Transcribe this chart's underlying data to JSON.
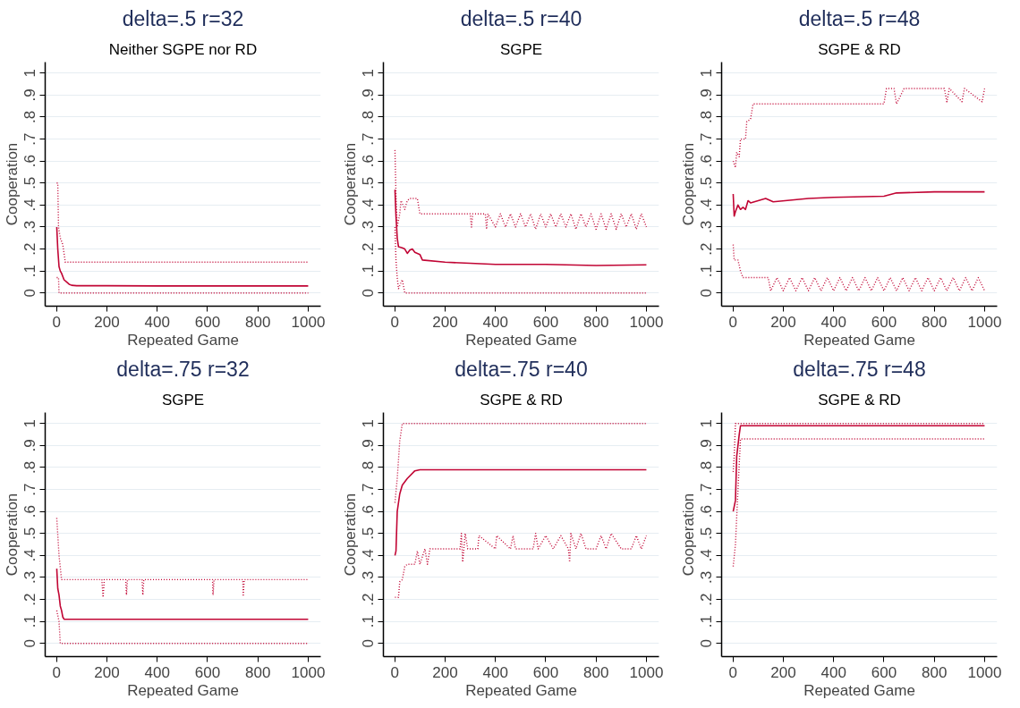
{
  "chart_data": [
    {
      "type": "line",
      "title": "delta=.5 r=32",
      "subtitle": "Neither SGPE nor RD",
      "xlabel": "Repeated Game",
      "ylabel": "Cooperation",
      "xlim": [
        -45,
        1050
      ],
      "ylim": [
        -0.06,
        1.05
      ],
      "xticks": [
        0,
        200,
        400,
        600,
        800,
        1000
      ],
      "yticks": [
        0,
        {
          "value": 0.1,
          "label": ".1"
        },
        {
          "value": 0.2,
          "label": ".2"
        },
        {
          "value": 0.3,
          "label": ".3"
        },
        {
          "value": 0.4,
          "label": ".4"
        },
        {
          "value": 0.5,
          "label": ".5"
        },
        {
          "value": 0.6,
          "label": ".6"
        },
        {
          "value": 0.7,
          "label": ".7"
        },
        {
          "value": 0.8,
          "label": ".8"
        },
        {
          "value": 0.9,
          "label": ".9"
        },
        1
      ],
      "grid": "y",
      "series": [
        {
          "color": "#c10534",
          "line_style": "solid",
          "x": [
            1,
            5,
            10,
            15,
            20,
            30,
            40,
            50,
            60,
            80,
            100,
            200,
            400,
            600,
            800,
            1000
          ],
          "values": [
            0.3,
            0.2,
            0.12,
            0.1,
            0.09,
            0.06,
            0.05,
            0.04,
            0.035,
            0.033,
            0.033,
            0.033,
            0.032,
            0.032,
            0.032,
            0.032
          ]
        },
        {
          "color": "#c10534",
          "line_style": "dotted",
          "x": [
            1,
            5,
            8,
            15,
            25,
            35,
            1000
          ],
          "values": [
            0.5,
            0.5,
            0.3,
            0.25,
            0.22,
            0.14,
            0.14
          ]
        },
        {
          "color": "#c10534",
          "line_style": "dotted",
          "x": [
            1,
            8,
            10,
            1000
          ],
          "values": [
            0.07,
            0.07,
            0,
            0
          ]
        }
      ]
    },
    {
      "type": "line",
      "title": "delta=.5 r=40",
      "subtitle": "SGPE",
      "xlabel": "Repeated Game",
      "ylabel": "Cooperation",
      "xlim": [
        -45,
        1050
      ],
      "ylim": [
        -0.06,
        1.05
      ],
      "xticks": [
        0,
        200,
        400,
        600,
        800,
        1000
      ],
      "yticks": [
        0,
        {
          "value": 0.1,
          "label": ".1"
        },
        {
          "value": 0.2,
          "label": ".2"
        },
        {
          "value": 0.3,
          "label": ".3"
        },
        {
          "value": 0.4,
          "label": ".4"
        },
        {
          "value": 0.5,
          "label": ".5"
        },
        {
          "value": 0.6,
          "label": ".6"
        },
        {
          "value": 0.7,
          "label": ".7"
        },
        {
          "value": 0.8,
          "label": ".8"
        },
        {
          "value": 0.9,
          "label": ".9"
        },
        1
      ],
      "grid": "y",
      "series": [
        {
          "color": "#c10534",
          "line_style": "solid",
          "x": [
            1,
            5,
            10,
            15,
            30,
            40,
            50,
            60,
            70,
            80,
            100,
            110,
            200,
            300,
            400,
            600,
            800,
            1000
          ],
          "values": [
            0.47,
            0.35,
            0.25,
            0.21,
            0.205,
            0.2,
            0.18,
            0.195,
            0.2,
            0.185,
            0.175,
            0.15,
            0.14,
            0.135,
            0.13,
            0.13,
            0.125,
            0.128
          ]
        },
        {
          "color": "#c10534",
          "line_style": "dotted",
          "x": [
            1,
            5,
            10,
            20,
            25,
            40,
            50,
            60,
            90,
            100,
            300,
            305,
            310,
            360,
            365,
            370,
            400,
            420,
            440,
            460,
            480,
            500,
            520,
            540,
            560,
            580,
            600,
            620,
            640,
            660,
            680,
            700,
            720,
            740,
            760,
            780,
            800,
            820,
            840,
            860,
            880,
            900,
            920,
            940,
            960,
            980,
            1000
          ],
          "values": [
            0.65,
            0.45,
            0.3,
            0.36,
            0.42,
            0.38,
            0.42,
            0.43,
            0.43,
            0.36,
            0.36,
            0.3,
            0.36,
            0.36,
            0.29,
            0.36,
            0.3,
            0.36,
            0.3,
            0.36,
            0.3,
            0.36,
            0.3,
            0.36,
            0.29,
            0.36,
            0.3,
            0.36,
            0.3,
            0.36,
            0.3,
            0.36,
            0.29,
            0.36,
            0.3,
            0.36,
            0.29,
            0.36,
            0.29,
            0.36,
            0.29,
            0.36,
            0.3,
            0.36,
            0.29,
            0.36,
            0.3
          ]
        },
        {
          "color": "#c10534",
          "line_style": "dotted",
          "x": [
            1,
            5,
            10,
            15,
            30,
            40,
            1000
          ],
          "values": [
            0.3,
            0.15,
            0.07,
            0.02,
            0.06,
            0,
            0
          ]
        }
      ]
    },
    {
      "type": "line",
      "title": "delta=.5 r=48",
      "subtitle": "SGPE & RD",
      "xlabel": "Repeated Game",
      "ylabel": "Cooperation",
      "xlim": [
        -45,
        1050
      ],
      "ylim": [
        -0.06,
        1.05
      ],
      "xticks": [
        0,
        200,
        400,
        600,
        800,
        1000
      ],
      "yticks": [
        0,
        {
          "value": 0.1,
          "label": ".1"
        },
        {
          "value": 0.2,
          "label": ".2"
        },
        {
          "value": 0.3,
          "label": ".3"
        },
        {
          "value": 0.4,
          "label": ".4"
        },
        {
          "value": 0.5,
          "label": ".5"
        },
        {
          "value": 0.6,
          "label": ".6"
        },
        {
          "value": 0.7,
          "label": ".7"
        },
        {
          "value": 0.8,
          "label": ".8"
        },
        {
          "value": 0.9,
          "label": ".9"
        },
        1
      ],
      "grid": "y",
      "series": [
        {
          "color": "#c10534",
          "line_style": "solid",
          "x": [
            1,
            5,
            10,
            20,
            30,
            40,
            50,
            60,
            70,
            130,
            160,
            300,
            400,
            600,
            650,
            800,
            1000
          ],
          "values": [
            0.45,
            0.35,
            0.37,
            0.4,
            0.38,
            0.39,
            0.38,
            0.42,
            0.41,
            0.43,
            0.415,
            0.43,
            0.435,
            0.44,
            0.455,
            0.46,
            0.46
          ]
        },
        {
          "color": "#c10534",
          "line_style": "dotted",
          "x": [
            1,
            10,
            15,
            25,
            30,
            50,
            55,
            70,
            80,
            600,
            610,
            640,
            650,
            680,
            840,
            850,
            860,
            910,
            920,
            990,
            1000
          ],
          "values": [
            0.6,
            0.57,
            0.64,
            0.62,
            0.7,
            0.7,
            0.78,
            0.79,
            0.86,
            0.86,
            0.93,
            0.93,
            0.86,
            0.93,
            0.93,
            0.87,
            0.93,
            0.87,
            0.93,
            0.87,
            0.93
          ]
        },
        {
          "color": "#c10534",
          "line_style": "dotted",
          "x": [
            1,
            5,
            20,
            30,
            40,
            140,
            150,
            175,
            200,
            225,
            250,
            275,
            300,
            325,
            350,
            375,
            400,
            425,
            450,
            475,
            500,
            525,
            550,
            575,
            600,
            625,
            650,
            675,
            700,
            725,
            750,
            775,
            800,
            825,
            850,
            875,
            900,
            925,
            950,
            975,
            1000
          ],
          "values": [
            0.22,
            0.15,
            0.15,
            0.1,
            0.07,
            0.07,
            0.01,
            0.07,
            0.01,
            0.07,
            0.01,
            0.07,
            0.01,
            0.07,
            0.01,
            0.07,
            0.01,
            0.07,
            0.01,
            0.07,
            0.01,
            0.07,
            0.01,
            0.07,
            0.01,
            0.07,
            0.01,
            0.07,
            0.01,
            0.07,
            0.01,
            0.07,
            0.01,
            0.07,
            0.01,
            0.07,
            0.01,
            0.07,
            0.01,
            0.07,
            0.01
          ]
        }
      ]
    },
    {
      "type": "line",
      "title": "delta=.75 r=32",
      "subtitle": "SGPE",
      "xlabel": "Repeated Game",
      "ylabel": "Cooperation",
      "xlim": [
        -45,
        1050
      ],
      "ylim": [
        -0.06,
        1.05
      ],
      "xticks": [
        0,
        200,
        400,
        600,
        800,
        1000
      ],
      "yticks": [
        0,
        {
          "value": 0.1,
          "label": ".1"
        },
        {
          "value": 0.2,
          "label": ".2"
        },
        {
          "value": 0.3,
          "label": ".3"
        },
        {
          "value": 0.4,
          "label": ".4"
        },
        {
          "value": 0.5,
          "label": ".5"
        },
        {
          "value": 0.6,
          "label": ".6"
        },
        {
          "value": 0.7,
          "label": ".7"
        },
        {
          "value": 0.8,
          "label": ".8"
        },
        {
          "value": 0.9,
          "label": ".9"
        },
        1
      ],
      "grid": "y",
      "series": [
        {
          "color": "#c10534",
          "line_style": "solid",
          "x": [
            1,
            5,
            10,
            15,
            20,
            25,
            30,
            100,
            400,
            700,
            1000
          ],
          "values": [
            0.34,
            0.25,
            0.22,
            0.17,
            0.15,
            0.12,
            0.11,
            0.11,
            0.11,
            0.11,
            0.11
          ]
        },
        {
          "color": "#c10534",
          "line_style": "dotted",
          "x": [
            1,
            10,
            20,
            180,
            185,
            190,
            275,
            278,
            282,
            340,
            343,
            347,
            620,
            622,
            626,
            740,
            742,
            746,
            1000
          ],
          "values": [
            0.57,
            0.4,
            0.29,
            0.29,
            0.21,
            0.29,
            0.29,
            0.22,
            0.29,
            0.29,
            0.22,
            0.29,
            0.29,
            0.22,
            0.29,
            0.29,
            0.22,
            0.29,
            0.29
          ]
        },
        {
          "color": "#c10534",
          "line_style": "dotted",
          "x": [
            1,
            10,
            15,
            1000
          ],
          "values": [
            0.15,
            0.1,
            0,
            0
          ]
        }
      ]
    },
    {
      "type": "line",
      "title": "delta=.75 r=40",
      "subtitle": "SGPE & RD",
      "xlabel": "Repeated Game",
      "ylabel": "Cooperation",
      "xlim": [
        -45,
        1050
      ],
      "ylim": [
        -0.06,
        1.05
      ],
      "xticks": [
        0,
        200,
        400,
        600,
        800,
        1000
      ],
      "yticks": [
        0,
        {
          "value": 0.1,
          "label": ".1"
        },
        {
          "value": 0.2,
          "label": ".2"
        },
        {
          "value": 0.3,
          "label": ".3"
        },
        {
          "value": 0.4,
          "label": ".4"
        },
        {
          "value": 0.5,
          "label": ".5"
        },
        {
          "value": 0.6,
          "label": ".6"
        },
        {
          "value": 0.7,
          "label": ".7"
        },
        {
          "value": 0.8,
          "label": ".8"
        },
        {
          "value": 0.9,
          "label": ".9"
        },
        1
      ],
      "grid": "y",
      "series": [
        {
          "color": "#c10534",
          "line_style": "solid",
          "x": [
            1,
            5,
            10,
            20,
            30,
            50,
            80,
            100,
            1000
          ],
          "values": [
            0.4,
            0.42,
            0.6,
            0.68,
            0.72,
            0.75,
            0.785,
            0.79,
            0.79
          ]
        },
        {
          "color": "#c10534",
          "line_style": "dotted",
          "x": [
            1,
            10,
            20,
            30,
            1000
          ],
          "values": [
            0.64,
            0.75,
            0.92,
            1,
            1
          ]
        },
        {
          "color": "#c10534",
          "line_style": "dotted",
          "x": [
            1,
            15,
            20,
            30,
            40,
            50,
            80,
            90,
            100,
            120,
            130,
            140,
            260,
            265,
            270,
            280,
            290,
            330,
            335,
            400,
            405,
            460,
            470,
            480,
            550,
            560,
            570,
            600,
            630,
            660,
            690,
            695,
            700,
            720,
            740,
            760,
            800,
            820,
            840,
            860,
            900,
            940,
            960,
            980,
            1000
          ],
          "values": [
            0.21,
            0.21,
            0.28,
            0.29,
            0.35,
            0.36,
            0.36,
            0.42,
            0.36,
            0.43,
            0.36,
            0.43,
            0.43,
            0.5,
            0.37,
            0.5,
            0.43,
            0.43,
            0.49,
            0.43,
            0.49,
            0.43,
            0.49,
            0.43,
            0.43,
            0.5,
            0.43,
            0.49,
            0.43,
            0.49,
            0.43,
            0.37,
            0.5,
            0.43,
            0.5,
            0.43,
            0.43,
            0.49,
            0.43,
            0.5,
            0.43,
            0.43,
            0.49,
            0.43,
            0.49
          ]
        }
      ]
    },
    {
      "type": "line",
      "title": "delta=.75 r=48",
      "subtitle": "SGPE & RD",
      "xlabel": "Repeated Game",
      "ylabel": "Cooperation",
      "xlim": [
        -45,
        1050
      ],
      "ylim": [
        -0.06,
        1.05
      ],
      "xticks": [
        0,
        200,
        400,
        600,
        800,
        1000
      ],
      "yticks": [
        0,
        {
          "value": 0.1,
          "label": ".1"
        },
        {
          "value": 0.2,
          "label": ".2"
        },
        {
          "value": 0.3,
          "label": ".3"
        },
        {
          "value": 0.4,
          "label": ".4"
        },
        {
          "value": 0.5,
          "label": ".5"
        },
        {
          "value": 0.6,
          "label": ".6"
        },
        {
          "value": 0.7,
          "label": ".7"
        },
        {
          "value": 0.8,
          "label": ".8"
        },
        {
          "value": 0.9,
          "label": ".9"
        },
        1
      ],
      "grid": "y",
      "series": [
        {
          "color": "#c10534",
          "line_style": "solid",
          "x": [
            1,
            10,
            15,
            25,
            30,
            1000
          ],
          "values": [
            0.6,
            0.65,
            0.85,
            0.95,
            0.99,
            0.99
          ]
        },
        {
          "color": "#c10534",
          "line_style": "dotted",
          "x": [
            1,
            5,
            10,
            1000
          ],
          "values": [
            0.78,
            0.85,
            1,
            1
          ]
        },
        {
          "color": "#c10534",
          "line_style": "dotted",
          "x": [
            1,
            10,
            20,
            30,
            1000
          ],
          "values": [
            0.35,
            0.45,
            0.7,
            0.93,
            0.93
          ]
        }
      ]
    }
  ]
}
